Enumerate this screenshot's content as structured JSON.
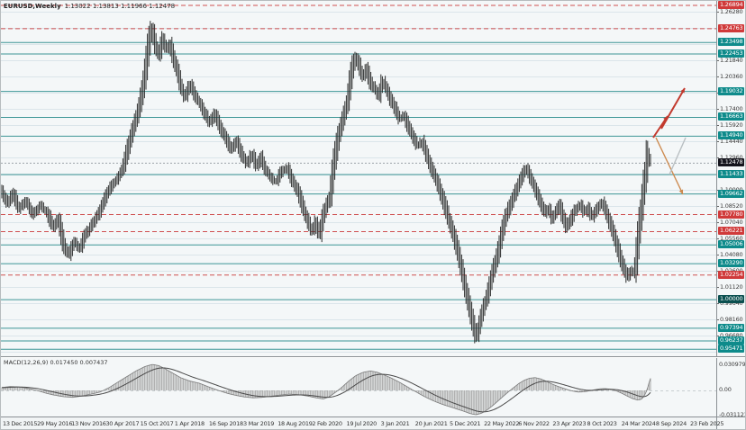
{
  "header": {
    "symbol_timeframe": "EURUSD,Weekly",
    "ohlc_text": "1.13022 1.13813 1.11966 1.12478",
    "open": "1.13022",
    "high": "1.13813",
    "low": "1.11966",
    "close": "1.12478"
  },
  "macd": {
    "label": "MACD(12,26,9)",
    "value": "0.017450",
    "signal": "0.007437",
    "axis_labels": [
      "0.030979",
      "0.00",
      "-0.031121"
    ]
  },
  "colors": {
    "background": "#f4f7f8",
    "bars": "#2d2d2d",
    "grid": "#dbe5ea",
    "teal_level": "#3d9696",
    "red_level": "#cf5050",
    "price_line": "#9aa4a8",
    "badge_teal": "#0e8b8b",
    "badge_red": "#d03a3a",
    "badge_price": "#14141c",
    "badge_dark_teal": "#0a4f4f",
    "arrow_red": "#c23a2e",
    "arrow_orange": "#cd8a4f",
    "arrow_gray": "#b9bfc2",
    "macd_hist": "#a8a8a8",
    "macd_outline": "#7a7a7a",
    "macd_signal": "#4a4a4a",
    "axis_text": "#3a3a3a"
  },
  "chart_data": {
    "type": "bar",
    "subtype": "ohlc-candlestick-weekly",
    "symbol": "EURUSD",
    "timeframe": "Weekly",
    "title": "EURUSD,Weekly 1.13022 1.13813 1.11966 1.12478",
    "price_axis": {
      "visible_labels": [
        "1.26280",
        "1.21840",
        "1.20360",
        "1.18880",
        "1.17400",
        "1.15920",
        "1.14440",
        "1.12960",
        "1.10000",
        "1.08520",
        "1.07040",
        "1.05560",
        "1.04080",
        "1.02600",
        "1.01120",
        "0.99640",
        "0.98160",
        "0.96680"
      ],
      "gridline_step": 0.0148,
      "range": [
        0.9495,
        1.2645
      ]
    },
    "level_badges": [
      {
        "value": "1.26894",
        "type": "red"
      },
      {
        "value": "1.24763",
        "type": "red"
      },
      {
        "value": "1.23498",
        "type": "teal"
      },
      {
        "value": "1.22453",
        "type": "teal"
      },
      {
        "value": "1.19032",
        "type": "teal"
      },
      {
        "value": "1.16663",
        "type": "teal"
      },
      {
        "value": "1.14940",
        "type": "teal"
      },
      {
        "value": "1.12478",
        "type": "price"
      },
      {
        "value": "1.11433",
        "type": "teal"
      },
      {
        "value": "1.09662",
        "type": "teal"
      },
      {
        "value": "1.07780",
        "type": "red"
      },
      {
        "value": "1.06221",
        "type": "red"
      },
      {
        "value": "1.05006",
        "type": "teal"
      },
      {
        "value": "1.03290",
        "type": "teal"
      },
      {
        "value": "1.02254",
        "type": "red"
      },
      {
        "value": "1.00000",
        "type": "dark-teal"
      },
      {
        "value": "0.97394",
        "type": "teal"
      },
      {
        "value": "0.96237",
        "type": "teal"
      },
      {
        "value": "0.95471",
        "type": "teal"
      }
    ],
    "x_axis_dates": [
      "13 Dec 2015",
      "29 May 2016",
      "13 Nov 2016",
      "30 Apr 2017",
      "15 Oct 2017",
      "1 Apr 2018",
      "16 Sep 2018",
      "3 Mar 2019",
      "18 Aug 2019",
      "2 Feb 2020",
      "19 Jul 2020",
      "3 Jan 2021",
      "20 Jun 2021",
      "5 Dec 2021",
      "22 May 2022",
      "6 Nov 2022",
      "23 Apr 2023",
      "8 Oct 2023",
      "24 Mar 2024",
      "8 Sep 2024",
      "23 Feb 2025"
    ],
    "close_path_anchors": [
      [
        0,
        1.1
      ],
      [
        8,
        1.0869
      ],
      [
        14,
        1.0967
      ],
      [
        20,
        1.0819
      ],
      [
        28,
        1.0901
      ],
      [
        36,
        1.077
      ],
      [
        44,
        1.0852
      ],
      [
        52,
        1.0786
      ],
      [
        58,
        1.0655
      ],
      [
        64,
        1.0737
      ],
      [
        70,
        1.049
      ],
      [
        76,
        1.04
      ],
      [
        82,
        1.0523
      ],
      [
        88,
        1.0457
      ],
      [
        94,
        1.0589
      ],
      [
        100,
        1.0655
      ],
      [
        106,
        1.0737
      ],
      [
        112,
        1.0836
      ],
      [
        118,
        1.0959
      ],
      [
        124,
        1.1041
      ],
      [
        130,
        1.1099
      ],
      [
        136,
        1.1197
      ],
      [
        142,
        1.1395
      ],
      [
        148,
        1.1575
      ],
      [
        154,
        1.174
      ],
      [
        160,
        1.2028
      ],
      [
        165,
        1.2356
      ],
      [
        168,
        1.248
      ],
      [
        172,
        1.2315
      ],
      [
        176,
        1.2217
      ],
      [
        180,
        1.2381
      ],
      [
        184,
        1.2274
      ],
      [
        188,
        1.2332
      ],
      [
        192,
        1.2192
      ],
      [
        196,
        1.2085
      ],
      [
        200,
        1.1945
      ],
      [
        205,
        1.1839
      ],
      [
        210,
        1.197
      ],
      [
        215,
        1.1871
      ],
      [
        220,
        1.1806
      ],
      [
        226,
        1.1707
      ],
      [
        232,
        1.1608
      ],
      [
        238,
        1.1691
      ],
      [
        244,
        1.1559
      ],
      [
        250,
        1.1477
      ],
      [
        256,
        1.1362
      ],
      [
        262,
        1.1444
      ],
      [
        268,
        1.1313
      ],
      [
        274,
        1.123
      ],
      [
        279,
        1.1329
      ],
      [
        284,
        1.1214
      ],
      [
        289,
        1.1296
      ],
      [
        294,
        1.1181
      ],
      [
        300,
        1.1115
      ],
      [
        306,
        1.1066
      ],
      [
        312,
        1.1165
      ],
      [
        318,
        1.1197
      ],
      [
        324,
        1.1082
      ],
      [
        330,
        1.0984
      ],
      [
        336,
        1.0819
      ],
      [
        342,
        1.0688
      ],
      [
        346,
        1.0606
      ],
      [
        350,
        1.0704
      ],
      [
        354,
        1.0573
      ],
      [
        358,
        1.0754
      ],
      [
        362,
        1.0852
      ],
      [
        366,
        1.0934
      ],
      [
        370,
        1.123
      ],
      [
        375,
        1.1477
      ],
      [
        380,
        1.1641
      ],
      [
        385,
        1.1806
      ],
      [
        390,
        1.2085
      ],
      [
        394,
        1.2217
      ],
      [
        398,
        1.2135
      ],
      [
        402,
        1.2028
      ],
      [
        406,
        1.2102
      ],
      [
        410,
        1.1986
      ],
      [
        415,
        1.1921
      ],
      [
        420,
        1.1855
      ],
      [
        424,
        1.2003
      ],
      [
        428,
        1.1921
      ],
      [
        433,
        1.1822
      ],
      [
        438,
        1.174
      ],
      [
        443,
        1.1641
      ],
      [
        448,
        1.1674
      ],
      [
        453,
        1.1559
      ],
      [
        458,
        1.1477
      ],
      [
        463,
        1.1395
      ],
      [
        468,
        1.1444
      ],
      [
        473,
        1.1313
      ],
      [
        478,
        1.1197
      ],
      [
        483,
        1.1099
      ],
      [
        488,
        1.0984
      ],
      [
        493,
        1.0852
      ],
      [
        498,
        1.0704
      ],
      [
        503,
        1.0573
      ],
      [
        508,
        1.0408
      ],
      [
        513,
        1.0211
      ],
      [
        517,
        1.0047
      ],
      [
        521,
        0.9899
      ],
      [
        525,
        0.9751
      ],
      [
        528,
        0.9636
      ],
      [
        532,
        0.9784
      ],
      [
        536,
        0.9915
      ],
      [
        540,
        1.0014
      ],
      [
        544,
        1.0162
      ],
      [
        548,
        1.0293
      ],
      [
        552,
        1.0408
      ],
      [
        556,
        1.0573
      ],
      [
        560,
        1.0721
      ],
      [
        564,
        1.0819
      ],
      [
        568,
        1.0901
      ],
      [
        572,
        1.0984
      ],
      [
        576,
        1.1066
      ],
      [
        580,
        1.1148
      ],
      [
        584,
        1.1197
      ],
      [
        588,
        1.1115
      ],
      [
        592,
        1.1033
      ],
      [
        596,
        1.0951
      ],
      [
        600,
        1.0869
      ],
      [
        604,
        1.0786
      ],
      [
        608,
        1.0836
      ],
      [
        612,
        1.0737
      ],
      [
        616,
        1.0786
      ],
      [
        620,
        1.0869
      ],
      [
        624,
        1.0754
      ],
      [
        628,
        1.0655
      ],
      [
        632,
        1.0704
      ],
      [
        636,
        1.0786
      ],
      [
        640,
        1.0836
      ],
      [
        644,
        1.0869
      ],
      [
        648,
        1.0786
      ],
      [
        652,
        1.0836
      ],
      [
        656,
        1.0737
      ],
      [
        660,
        1.0786
      ],
      [
        664,
        1.0852
      ],
      [
        668,
        1.0885
      ],
      [
        672,
        1.0803
      ],
      [
        676,
        1.0704
      ],
      [
        680,
        1.0606
      ],
      [
        684,
        1.049
      ],
      [
        688,
        1.0375
      ],
      [
        692,
        1.0277
      ],
      [
        696,
        1.0194
      ],
      [
        700,
        1.026
      ],
      [
        704,
        1.0244
      ],
      [
        706,
        1.0408
      ],
      [
        708,
        1.0573
      ],
      [
        710,
        1.0721
      ],
      [
        712,
        1.0836
      ],
      [
        714,
        1.1033
      ],
      [
        716,
        1.1115
      ],
      [
        718,
        1.1345
      ],
      [
        720,
        1.1263
      ],
      [
        722,
        1.1247
      ]
    ],
    "macd_points": [
      [
        0,
        0.003
      ],
      [
        10,
        0.0042
      ],
      [
        20,
        0.0038
      ],
      [
        30,
        0.0022
      ],
      [
        40,
        0.0
      ],
      [
        50,
        -0.003
      ],
      [
        60,
        -0.0052
      ],
      [
        70,
        -0.0068
      ],
      [
        80,
        -0.0075
      ],
      [
        90,
        -0.006
      ],
      [
        100,
        -0.004
      ],
      [
        110,
        -0.0018
      ],
      [
        120,
        0.003
      ],
      [
        130,
        0.009
      ],
      [
        140,
        0.015
      ],
      [
        150,
        0.021
      ],
      [
        160,
        0.0258
      ],
      [
        168,
        0.028
      ],
      [
        175,
        0.0268
      ],
      [
        182,
        0.0235
      ],
      [
        190,
        0.019
      ],
      [
        200,
        0.0135
      ],
      [
        210,
        0.01
      ],
      [
        220,
        0.0078
      ],
      [
        230,
        0.004
      ],
      [
        240,
        0.0005
      ],
      [
        250,
        -0.0028
      ],
      [
        260,
        -0.0052
      ],
      [
        270,
        -0.007
      ],
      [
        280,
        -0.008
      ],
      [
        290,
        -0.0075
      ],
      [
        300,
        -0.0062
      ],
      [
        310,
        -0.005
      ],
      [
        320,
        -0.004
      ],
      [
        330,
        -0.0045
      ],
      [
        340,
        -0.006
      ],
      [
        350,
        -0.008
      ],
      [
        358,
        -0.0092
      ],
      [
        364,
        -0.007
      ],
      [
        370,
        -0.003
      ],
      [
        378,
        0.003
      ],
      [
        386,
        0.01
      ],
      [
        394,
        0.016
      ],
      [
        402,
        0.0195
      ],
      [
        410,
        0.021
      ],
      [
        418,
        0.0195
      ],
      [
        426,
        0.0165
      ],
      [
        434,
        0.013
      ],
      [
        442,
        0.009
      ],
      [
        450,
        0.0045
      ],
      [
        458,
        0.0
      ],
      [
        466,
        -0.0045
      ],
      [
        474,
        -0.0085
      ],
      [
        482,
        -0.012
      ],
      [
        490,
        -0.015
      ],
      [
        498,
        -0.0175
      ],
      [
        506,
        -0.02
      ],
      [
        514,
        -0.0225
      ],
      [
        521,
        -0.025
      ],
      [
        527,
        -0.0262
      ],
      [
        533,
        -0.0248
      ],
      [
        539,
        -0.0215
      ],
      [
        545,
        -0.017
      ],
      [
        551,
        -0.012
      ],
      [
        557,
        -0.0068
      ],
      [
        563,
        -0.0018
      ],
      [
        569,
        0.003
      ],
      [
        575,
        0.0075
      ],
      [
        581,
        0.011
      ],
      [
        587,
        0.0132
      ],
      [
        593,
        0.0138
      ],
      [
        599,
        0.0125
      ],
      [
        605,
        0.01
      ],
      [
        611,
        0.0072
      ],
      [
        617,
        0.0048
      ],
      [
        623,
        0.0028
      ],
      [
        629,
        0.0008
      ],
      [
        635,
        -0.0008
      ],
      [
        641,
        -0.0018
      ],
      [
        647,
        -0.0015
      ],
      [
        653,
        -0.0005
      ],
      [
        659,
        0.0008
      ],
      [
        665,
        0.0018
      ],
      [
        671,
        0.002
      ],
      [
        677,
        0.0012
      ],
      [
        683,
        -0.0005
      ],
      [
        689,
        -0.003
      ],
      [
        695,
        -0.006
      ],
      [
        701,
        -0.0088
      ],
      [
        707,
        -0.0105
      ],
      [
        711,
        -0.0095
      ],
      [
        714,
        -0.006
      ],
      [
        717,
        0.0
      ],
      [
        719,
        0.007
      ],
      [
        721,
        0.013
      ],
      [
        722,
        0.0175
      ]
    ]
  },
  "annotations": {
    "trend_arrows": [
      {
        "name": "bullish-projection-arrow-1",
        "from": [
          724,
          152
        ],
        "to": [
          740,
          128
        ],
        "color": "#c23a2e",
        "width": 2,
        "head": true
      },
      {
        "name": "bullish-projection-arrow-2",
        "from": [
          733,
          142
        ],
        "to": [
          759,
          97
        ],
        "color": "#c23a2e",
        "width": 2,
        "head": true
      },
      {
        "name": "bearish-projection-arrow",
        "from": [
          727,
          152
        ],
        "to": [
          757,
          215
        ],
        "color": "#cd8a4f",
        "width": 1.4,
        "head": true
      },
      {
        "name": "alternate-path-line",
        "from": [
          760,
          152
        ],
        "to": [
          742,
          193
        ],
        "color": "#b9bfc2",
        "width": 1.4,
        "head": false
      }
    ]
  }
}
